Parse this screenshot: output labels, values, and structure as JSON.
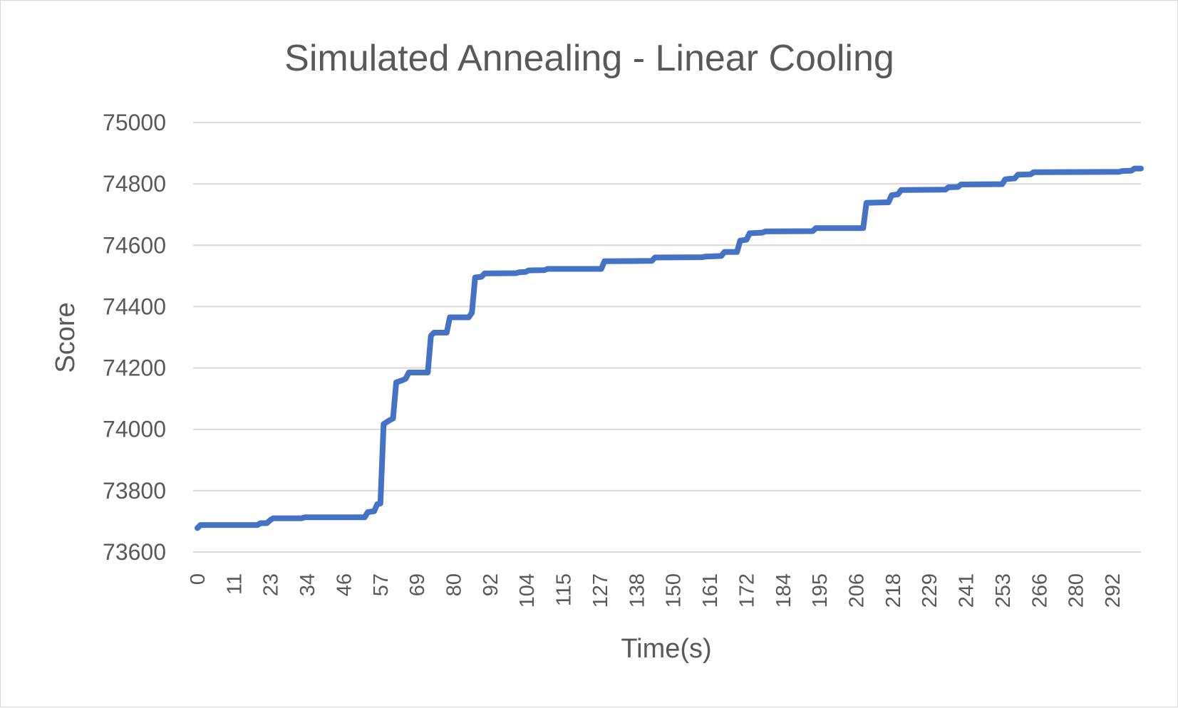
{
  "chart_data": {
    "type": "line",
    "title": "Simulated Annealing - Linear Cooling",
    "xlabel": "Time(s)",
    "ylabel": "Score",
    "ylim": [
      73600,
      75000
    ],
    "yticks": [
      "75000",
      "74800",
      "74600",
      "74400",
      "74200",
      "74000",
      "73800",
      "73600"
    ],
    "xlim": [
      0,
      299
    ],
    "xticks": [
      "0",
      "11",
      "23",
      "34",
      "46",
      "57",
      "69",
      "80",
      "92",
      "104",
      "115",
      "127",
      "138",
      "150",
      "161",
      "172",
      "184",
      "195",
      "206",
      "218",
      "229",
      "241",
      "253",
      "266",
      "280",
      "292"
    ],
    "grid": true,
    "line_color": "#4472c4",
    "series": [
      {
        "name": "",
        "points": [
          [
            0,
            73678
          ],
          [
            1,
            73688
          ],
          [
            19,
            73688
          ],
          [
            20,
            73694
          ],
          [
            22,
            73694
          ],
          [
            23,
            73703
          ],
          [
            24,
            73710
          ],
          [
            33,
            73710
          ],
          [
            34,
            73713
          ],
          [
            53,
            73713
          ],
          [
            54,
            73730
          ],
          [
            56,
            73733
          ],
          [
            57,
            73756
          ],
          [
            58,
            73758
          ],
          [
            59,
            74017
          ],
          [
            61,
            74030
          ],
          [
            62,
            74035
          ],
          [
            63,
            74153
          ],
          [
            65,
            74160
          ],
          [
            66,
            74165
          ],
          [
            67,
            74185
          ],
          [
            73,
            74185
          ],
          [
            74,
            74305
          ],
          [
            75,
            74315
          ],
          [
            79,
            74315
          ],
          [
            80,
            74365
          ],
          [
            86,
            74365
          ],
          [
            87,
            74380
          ],
          [
            88,
            74495
          ],
          [
            90,
            74497
          ],
          [
            91,
            74508
          ],
          [
            101,
            74509
          ],
          [
            102,
            74512
          ],
          [
            104,
            74513
          ],
          [
            105,
            74518
          ],
          [
            110,
            74519
          ],
          [
            111,
            74523
          ],
          [
            128,
            74523
          ],
          [
            129,
            74548
          ],
          [
            144,
            74549
          ],
          [
            145,
            74560
          ],
          [
            160,
            74561
          ],
          [
            161,
            74563
          ],
          [
            166,
            74565
          ],
          [
            167,
            74578
          ],
          [
            171,
            74578
          ],
          [
            172,
            74615
          ],
          [
            174,
            74618
          ],
          [
            175,
            74639
          ],
          [
            179,
            74641
          ],
          [
            180,
            74645
          ],
          [
            195,
            74646
          ],
          [
            196,
            74656
          ],
          [
            211,
            74656
          ],
          [
            212,
            74738
          ],
          [
            219,
            74740
          ],
          [
            220,
            74763
          ],
          [
            222,
            74766
          ],
          [
            223,
            74780
          ],
          [
            237,
            74781
          ],
          [
            238,
            74789
          ],
          [
            241,
            74790
          ],
          [
            242,
            74798
          ],
          [
            255,
            74799
          ],
          [
            256,
            74815
          ],
          [
            259,
            74818
          ],
          [
            260,
            74830
          ],
          [
            264,
            74831
          ],
          [
            265,
            74838
          ],
          [
            292,
            74839
          ],
          [
            293,
            74842
          ],
          [
            296,
            74843
          ],
          [
            297,
            74850
          ],
          [
            299,
            74850
          ]
        ]
      }
    ]
  }
}
